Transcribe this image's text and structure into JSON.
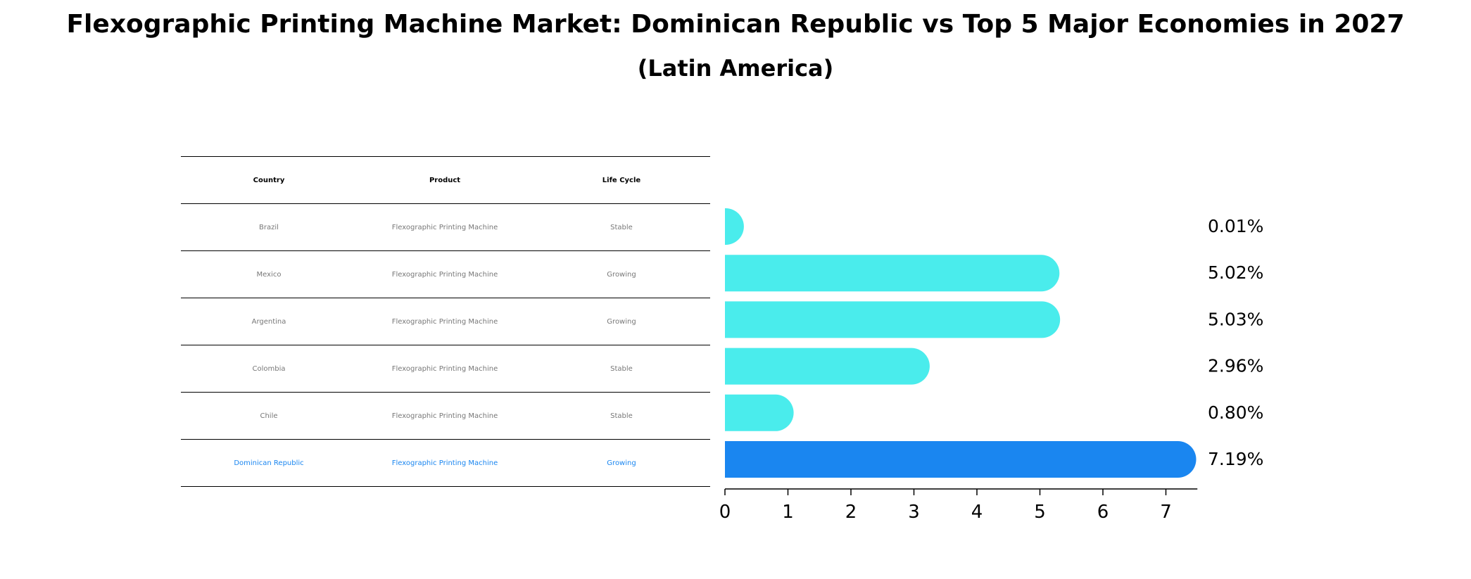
{
  "title": "Flexographic Printing Machine Market: Dominican Republic vs Top 5 Major Economies in 2027",
  "subtitle": "(Latin America)",
  "table": {
    "headers": [
      "Country",
      "Product",
      "Life Cycle"
    ],
    "rows": [
      [
        "Brazil",
        "Flexographic Printing Machine",
        "Stable"
      ],
      [
        "Mexico",
        "Flexographic Printing Machine",
        "Growing"
      ],
      [
        "Argentina",
        "Flexographic Printing Machine",
        "Growing"
      ],
      [
        "Colombia",
        "Flexographic Printing Machine",
        "Stable"
      ],
      [
        "Chile",
        "Flexographic Printing Machine",
        "Stable"
      ],
      [
        "Dominican Republic",
        "Flexographic Printing Machine",
        "Growing"
      ]
    ]
  },
  "colors": {
    "bar": "#4aecec",
    "highlight": "#1a86f0",
    "highlight_text": "#1a86f0"
  },
  "chart_data": {
    "type": "bar",
    "orientation": "horizontal",
    "categories": [
      "Brazil",
      "Mexico",
      "Argentina",
      "Colombia",
      "Chile",
      "Dominican Republic"
    ],
    "values": [
      0.01,
      5.02,
      5.03,
      2.96,
      0.8,
      7.19
    ],
    "value_labels": [
      "0.01%",
      "5.02%",
      "5.03%",
      "2.96%",
      "0.80%",
      "7.19%"
    ],
    "highlight_index": 5,
    "xlim": [
      0,
      7.5
    ],
    "xticks": [
      0,
      1,
      2,
      3,
      4,
      5,
      6,
      7
    ],
    "grid": false
  }
}
